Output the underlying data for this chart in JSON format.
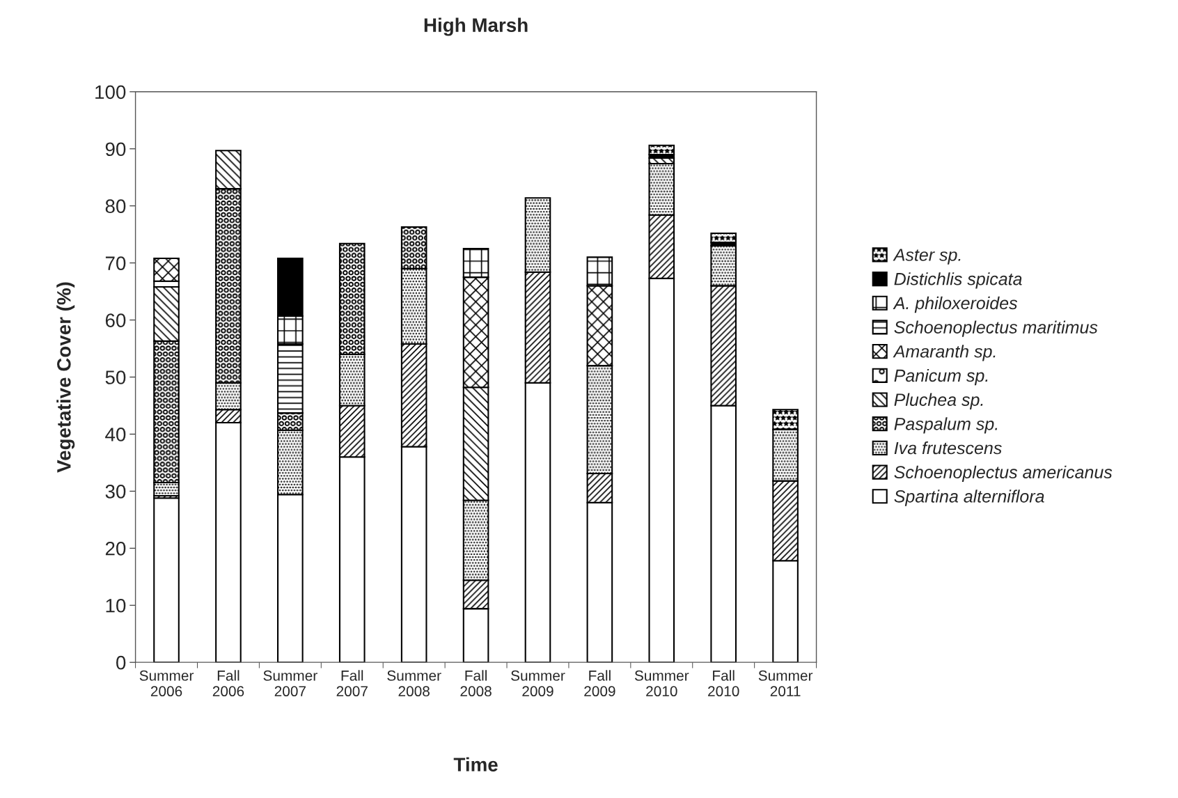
{
  "chart_data": {
    "type": "bar",
    "stacked": true,
    "title": "High Marsh",
    "xlabel": "Time",
    "ylabel": "Vegetative Cover (%)",
    "categories": [
      "Summer 2006",
      "Fall 2006",
      "Summer 2007",
      "Fall 2007",
      "Summer 2008",
      "Fall 2008",
      "Summer 2009",
      "Fall 2009",
      "Summer 2010",
      "Fall 2010",
      "Summer 2011"
    ],
    "ylim": [
      0,
      100
    ],
    "yticks": [
      0,
      10,
      20,
      30,
      40,
      50,
      60,
      70,
      80,
      90,
      100
    ],
    "grid": false,
    "legend": "right",
    "series": [
      {
        "name": "Spartina alterniflora",
        "color": "#ffffff",
        "values": [
          28.8,
          42,
          29.4,
          36,
          37.8,
          9.4,
          49,
          28,
          67.3,
          45,
          17.8
        ]
      },
      {
        "name": "Schoenoplectus americanus",
        "color": "#000000",
        "values": [
          0.4,
          2.3,
          null,
          9,
          18,
          5,
          19.4,
          5.1,
          11.1,
          21,
          14
        ]
      },
      {
        "name": "Iva frutescens",
        "color": "#000000",
        "values": [
          2.3,
          4.7,
          11.3,
          9,
          13.2,
          14,
          13,
          18.9,
          9,
          7,
          9
        ]
      },
      {
        "name": "Paspalum sp.",
        "color": "#000000",
        "values": [
          24.8,
          34,
          3.0,
          19.4,
          7.3,
          null,
          null,
          null,
          null,
          null,
          null
        ]
      },
      {
        "name": "Pluchea sp.",
        "color": "#000000",
        "values": [
          9.5,
          6.7,
          null,
          null,
          null,
          19.8,
          null,
          null,
          1.0,
          null,
          null
        ]
      },
      {
        "name": "Panicum sp.",
        "color": "#000000",
        "values": [
          1.0,
          null,
          null,
          null,
          null,
          null,
          null,
          null,
          null,
          null,
          null
        ]
      },
      {
        "name": "Amaranth sp.",
        "color": "#000000",
        "values": [
          4.0,
          null,
          null,
          null,
          null,
          19.3,
          null,
          14,
          null,
          null,
          null
        ]
      },
      {
        "name": "Schoenoplectus maritimus",
        "color": "#000000",
        "values": [
          null,
          null,
          12.1,
          null,
          null,
          null,
          null,
          null,
          null,
          null,
          null
        ]
      },
      {
        "name": "A. philoxeroides",
        "color": "#000000",
        "values": [
          null,
          null,
          4.9,
          null,
          null,
          5,
          null,
          5,
          null,
          null,
          null
        ]
      },
      {
        "name": "Distichlis spicata",
        "color": "#000000",
        "values": [
          null,
          null,
          10.1,
          null,
          null,
          null,
          null,
          null,
          0.6,
          0.6,
          null
        ]
      },
      {
        "name": "Aster sp.",
        "color": "#000000",
        "values": [
          null,
          null,
          null,
          null,
          null,
          null,
          null,
          null,
          1.6,
          1.6,
          3.5
        ]
      }
    ]
  }
}
